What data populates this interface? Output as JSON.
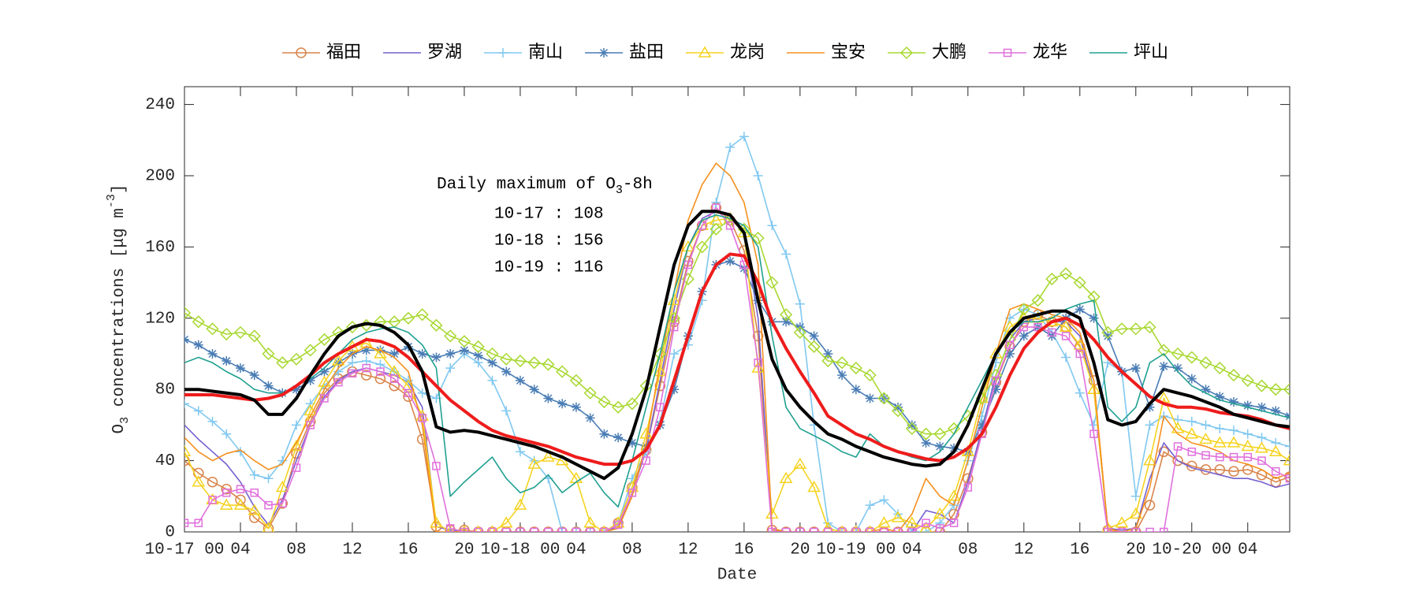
{
  "chart_data": {
    "type": "line",
    "x_label": "Date",
    "y_label": [
      "O",
      "3",
      " concentrations [μg m",
      "-3",
      "]"
    ],
    "annotation": {
      "title": [
        "Daily maximum of O",
        "3",
        "-8h"
      ],
      "lines": [
        "10-17 : 108",
        "10-18 : 156",
        "10-19 : 116"
      ]
    },
    "legend": "top",
    "x": [
      0,
      1,
      2,
      3,
      4,
      5,
      6,
      7,
      8,
      9,
      10,
      11,
      12,
      13,
      14,
      15,
      16,
      17,
      18,
      19,
      20,
      21,
      22,
      23,
      24,
      25,
      26,
      27,
      28,
      29,
      30,
      31,
      32,
      33,
      34,
      35,
      36,
      37,
      38,
      39,
      40,
      41,
      42,
      43,
      44,
      45,
      46,
      47,
      48,
      49,
      50,
      51,
      52,
      53,
      54,
      55,
      56,
      57,
      58,
      59,
      60,
      61,
      62,
      63,
      64,
      65,
      66,
      67,
      68,
      69,
      70,
      71,
      72,
      73,
      74,
      75,
      76,
      77,
      78,
      79
    ],
    "xlim": [
      0,
      79
    ],
    "xticks": [
      {
        "value": 0,
        "label": "10-17 00"
      },
      {
        "value": 4,
        "label": "04"
      },
      {
        "value": 8,
        "label": "08"
      },
      {
        "value": 12,
        "label": "12"
      },
      {
        "value": 16,
        "label": "16"
      },
      {
        "value": 20,
        "label": "20"
      },
      {
        "value": 24,
        "label": "10-18 00"
      },
      {
        "value": 28,
        "label": "04"
      },
      {
        "value": 32,
        "label": "08"
      },
      {
        "value": 36,
        "label": "12"
      },
      {
        "value": 40,
        "label": "16"
      },
      {
        "value": 44,
        "label": "20"
      },
      {
        "value": 48,
        "label": "10-19 00"
      },
      {
        "value": 52,
        "label": "04"
      },
      {
        "value": 56,
        "label": "08"
      },
      {
        "value": 60,
        "label": "12"
      },
      {
        "value": 64,
        "label": "16"
      },
      {
        "value": 68,
        "label": "20"
      },
      {
        "value": 72,
        "label": "10-20 00"
      },
      {
        "value": 76,
        "label": "04"
      }
    ],
    "ylim": [
      0,
      250
    ],
    "yticks": [
      0,
      40,
      80,
      120,
      160,
      200,
      240
    ],
    "grid": false,
    "series": [
      {
        "name": "福田",
        "color": "#d9844a",
        "marker": "circle",
        "values": [
          40,
          33,
          28,
          24,
          18,
          8,
          2,
          16,
          44,
          62,
          78,
          86,
          90,
          88,
          86,
          82,
          76,
          52,
          3,
          1,
          1,
          0,
          0,
          0,
          0,
          0,
          0,
          0,
          0,
          0,
          0,
          5,
          25,
          46,
          82,
          118,
          152,
          172,
          182,
          175,
          158,
          110,
          1,
          0,
          0,
          0,
          0,
          0,
          0,
          0,
          0,
          0,
          0,
          0,
          0,
          10,
          30,
          56,
          84,
          104,
          118,
          122,
          118,
          115,
          104,
          85,
          1,
          0,
          0,
          15,
          45,
          40,
          37,
          35,
          35,
          34,
          35,
          32,
          28,
          31
        ]
      },
      {
        "name": "罗湖",
        "color": "#7660d0",
        "marker": "none",
        "values": [
          60,
          52,
          45,
          38,
          28,
          14,
          4,
          18,
          40,
          60,
          76,
          85,
          90,
          92,
          90,
          88,
          84,
          70,
          3,
          1,
          0,
          0,
          0,
          0,
          0,
          0,
          0,
          0,
          0,
          0,
          0,
          3,
          22,
          46,
          85,
          125,
          160,
          176,
          180,
          178,
          168,
          120,
          0,
          0,
          0,
          0,
          0,
          0,
          0,
          0,
          0,
          0,
          0,
          12,
          10,
          5,
          28,
          58,
          88,
          108,
          118,
          120,
          118,
          118,
          110,
          80,
          2,
          1,
          2,
          30,
          50,
          40,
          36,
          34,
          32,
          30,
          30,
          28,
          25,
          27
        ]
      },
      {
        "name": "南山",
        "color": "#80c8f0",
        "marker": "plus",
        "values": [
          72,
          68,
          62,
          55,
          45,
          32,
          30,
          40,
          60,
          72,
          82,
          90,
          95,
          96,
          94,
          90,
          85,
          78,
          75,
          92,
          100,
          95,
          85,
          68,
          45,
          40,
          30,
          0,
          0,
          0,
          0,
          5,
          30,
          45,
          62,
          100,
          105,
          130,
          185,
          216,
          222,
          200,
          172,
          156,
          128,
          60,
          5,
          0,
          0,
          15,
          18,
          10,
          0,
          0,
          5,
          15,
          40,
          65,
          95,
          120,
          125,
          122,
          112,
          98,
          78,
          60,
          95,
          90,
          20,
          60,
          65,
          63,
          62,
          60,
          58,
          57,
          55,
          53,
          50,
          48
        ]
      },
      {
        "name": "盐田",
        "color": "#4a7db5",
        "marker": "asterisk",
        "values": [
          108,
          105,
          100,
          96,
          92,
          88,
          82,
          78,
          80,
          85,
          90,
          95,
          100,
          102,
          102,
          100,
          104,
          100,
          98,
          100,
          102,
          99,
          95,
          90,
          85,
          80,
          75,
          72,
          70,
          64,
          55,
          53,
          50,
          48,
          60,
          80,
          110,
          135,
          150,
          152,
          148,
          130,
          118,
          118,
          115,
          110,
          100,
          88,
          80,
          75,
          75,
          70,
          60,
          50,
          48,
          47,
          45,
          60,
          80,
          100,
          110,
          115,
          110,
          120,
          125,
          120,
          110,
          90,
          92,
          70,
          93,
          92,
          86,
          80,
          76,
          73,
          71,
          70,
          68,
          65
        ]
      },
      {
        "name": "龙岗",
        "color": "#f5d320",
        "marker": "triangle",
        "values": [
          45,
          28,
          18,
          15,
          15,
          12,
          2,
          25,
          48,
          68,
          84,
          96,
          104,
          106,
          100,
          90,
          82,
          65,
          5,
          0,
          0,
          0,
          0,
          5,
          15,
          38,
          42,
          40,
          30,
          5,
          0,
          5,
          25,
          55,
          90,
          130,
          160,
          172,
          175,
          176,
          168,
          92,
          10,
          30,
          38,
          25,
          2,
          0,
          0,
          0,
          5,
          8,
          5,
          2,
          10,
          20,
          45,
          75,
          100,
          115,
          120,
          120,
          118,
          115,
          105,
          80,
          2,
          5,
          10,
          40,
          75,
          58,
          55,
          52,
          50,
          50,
          48,
          47,
          45,
          40
        ]
      },
      {
        "name": "宝安",
        "color": "#f5901e",
        "marker": "none",
        "values": [
          53,
          45,
          40,
          44,
          46,
          40,
          35,
          38,
          50,
          65,
          80,
          92,
          100,
          104,
          102,
          98,
          90,
          60,
          0,
          0,
          0,
          0,
          0,
          0,
          0,
          0,
          0,
          0,
          0,
          0,
          0,
          2,
          20,
          50,
          95,
          135,
          175,
          195,
          207,
          200,
          185,
          150,
          2,
          0,
          0,
          0,
          0,
          0,
          0,
          0,
          2,
          0,
          10,
          30,
          20,
          15,
          40,
          70,
          100,
          125,
          128,
          125,
          122,
          120,
          112,
          85,
          2,
          0,
          2,
          25,
          65,
          55,
          50,
          48,
          45,
          40,
          38,
          35,
          30,
          33
        ]
      },
      {
        "name": "大鹏",
        "color": "#a8d830",
        "marker": "diamond",
        "values": [
          123,
          118,
          114,
          111,
          112,
          110,
          100,
          95,
          97,
          102,
          108,
          112,
          115,
          116,
          118,
          118,
          120,
          122,
          116,
          110,
          107,
          104,
          100,
          97,
          96,
          95,
          94,
          90,
          85,
          78,
          73,
          70,
          72,
          82,
          100,
          120,
          142,
          160,
          170,
          175,
          170,
          165,
          140,
          122,
          112,
          104,
          96,
          95,
          92,
          88,
          75,
          68,
          58,
          55,
          55,
          58,
          65,
          75,
          88,
          108,
          125,
          130,
          142,
          145,
          140,
          132,
          112,
          114,
          114,
          115,
          102,
          100,
          98,
          95,
          92,
          88,
          85,
          82,
          80,
          80
        ]
      },
      {
        "name": "龙华",
        "color": "#e070dc",
        "marker": "square",
        "values": [
          5,
          5,
          18,
          22,
          24,
          22,
          15,
          16,
          36,
          60,
          75,
          84,
          89,
          92,
          90,
          86,
          78,
          64,
          37,
          2,
          0,
          0,
          0,
          0,
          0,
          0,
          0,
          0,
          0,
          0,
          0,
          4,
          22,
          40,
          70,
          115,
          150,
          172,
          182,
          172,
          150,
          95,
          0,
          0,
          0,
          0,
          0,
          0,
          0,
          0,
          0,
          0,
          0,
          5,
          2,
          5,
          25,
          55,
          85,
          105,
          115,
          115,
          112,
          110,
          100,
          55,
          0,
          0,
          0,
          0,
          0,
          48,
          45,
          43,
          42,
          42,
          42,
          40,
          34,
          30
        ]
      },
      {
        "name": "坪山",
        "color": "#20a090",
        "marker": "none",
        "values": [
          95,
          98,
          95,
          90,
          86,
          80,
          78,
          78,
          82,
          86,
          92,
          100,
          108,
          112,
          114,
          115,
          112,
          105,
          92,
          20,
          28,
          35,
          42,
          30,
          22,
          25,
          32,
          22,
          28,
          33,
          22,
          14,
          40,
          70,
          100,
          135,
          160,
          175,
          178,
          176,
          172,
          160,
          110,
          70,
          58,
          54,
          50,
          45,
          42,
          55,
          48,
          45,
          42,
          40,
          45,
          55,
          70,
          85,
          100,
          112,
          118,
          118,
          120,
          125,
          128,
          130,
          70,
          62,
          70,
          95,
          100,
          90,
          82,
          78,
          74,
          72,
          70,
          68,
          66,
          64
        ]
      },
      {
        "color": "#ee1c1c",
        "marker": "none",
        "linewidth": "thick",
        "values": [
          77,
          77,
          77,
          76,
          75,
          74,
          75,
          77,
          82,
          88,
          95,
          100,
          104,
          108,
          107,
          104,
          98,
          90,
          82,
          74,
          68,
          62,
          57,
          54,
          52,
          50,
          48,
          45,
          42,
          40,
          38,
          38,
          40,
          46,
          60,
          85,
          110,
          135,
          150,
          156,
          155,
          140,
          118,
          103,
          90,
          78,
          65,
          60,
          55,
          52,
          48,
          45,
          43,
          41,
          40,
          42,
          47,
          55,
          70,
          88,
          103,
          112,
          118,
          120,
          116,
          108,
          98,
          90,
          83,
          76,
          72,
          70,
          70,
          69,
          67,
          66,
          65,
          63,
          60,
          58
        ]
      },
      {
        "color": "#000000",
        "marker": "none",
        "linewidth": "thick",
        "values": [
          80,
          80,
          79,
          78,
          77,
          74,
          66,
          66,
          75,
          88,
          100,
          110,
          115,
          117,
          116,
          112,
          105,
          90,
          59,
          56,
          57,
          56,
          54,
          52,
          50,
          48,
          45,
          42,
          38,
          34,
          30,
          36,
          55,
          80,
          115,
          150,
          172,
          180,
          180,
          178,
          168,
          130,
          97,
          80,
          70,
          62,
          55,
          52,
          48,
          45,
          42,
          40,
          38,
          37,
          38,
          45,
          60,
          80,
          100,
          112,
          120,
          122,
          124,
          124,
          120,
          95,
          63,
          60,
          62,
          72,
          80,
          78,
          76,
          73,
          70,
          66,
          64,
          62,
          60,
          59
        ]
      }
    ]
  }
}
